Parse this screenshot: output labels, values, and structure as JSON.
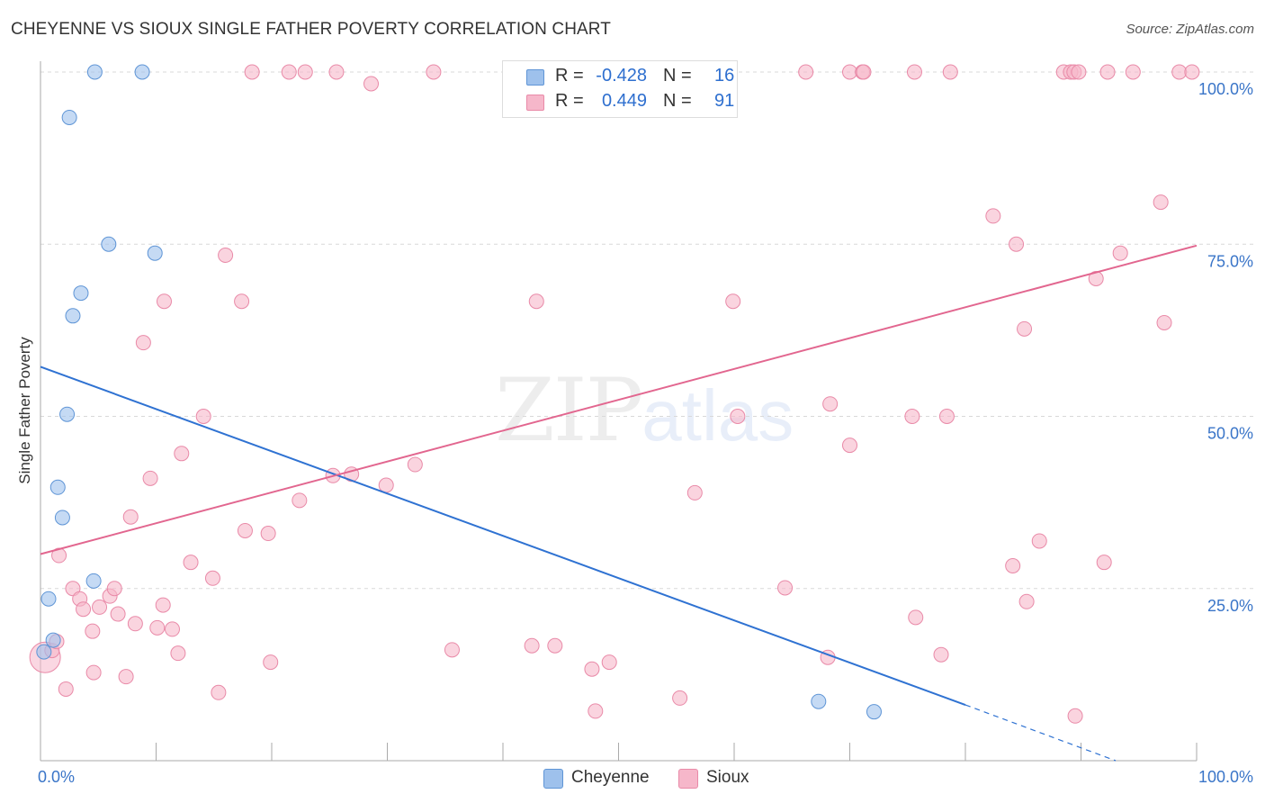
{
  "title": "CHEYENNE VS SIOUX SINGLE FATHER POVERTY CORRELATION CHART",
  "source": "Source: ZipAtlas.com",
  "watermark": {
    "zip": "ZIP",
    "atlas": "atlas"
  },
  "chart_data": {
    "type": "scatter",
    "title": "CHEYENNE VS SIOUX SINGLE FATHER POVERTY CORRELATION CHART",
    "xlabel": "",
    "ylabel": "Single Father Poverty",
    "xlim": [
      0,
      100
    ],
    "ylim": [
      0,
      100
    ],
    "x_tick_labels": {
      "left": "0.0%",
      "right": "100.0%"
    },
    "y_ticks": [
      {
        "value": 25,
        "label": "25.0%"
      },
      {
        "value": 50,
        "label": "50.0%"
      },
      {
        "value": 75,
        "label": "75.0%"
      },
      {
        "value": 100,
        "label": "100.0%"
      }
    ],
    "grid": true,
    "legend_position": "bottom-center",
    "series": [
      {
        "name": "Cheyenne",
        "color": "#9ec1ec",
        "edge": "#5f95d6",
        "line_color": "#2f72d2",
        "R": "-0.428",
        "N": "16",
        "trend": {
          "x1": 0,
          "y1": 57.2,
          "x2": 80,
          "y2": 8.1,
          "dash_to_x": 93,
          "dash_to_y": 0
        },
        "points": [
          [
            0.3,
            15.8
          ],
          [
            0.7,
            23.5
          ],
          [
            1.1,
            17.5
          ],
          [
            1.5,
            39.7
          ],
          [
            1.9,
            35.3
          ],
          [
            2.3,
            50.3
          ],
          [
            2.5,
            93.4
          ],
          [
            2.8,
            64.6
          ],
          [
            3.5,
            67.9
          ],
          [
            4.6,
            26.1
          ],
          [
            4.7,
            100
          ],
          [
            5.9,
            75.0
          ],
          [
            8.8,
            100
          ],
          [
            9.9,
            73.7
          ],
          [
            67.3,
            8.6
          ],
          [
            72.1,
            7.1
          ]
        ]
      },
      {
        "name": "Sioux",
        "color": "#f6b7ca",
        "edge": "#e98aa8",
        "line_color": "#e2668f",
        "R": "0.449",
        "N": "91",
        "trend": {
          "x1": 0,
          "y1": 30.0,
          "x2": 100,
          "y2": 74.8
        },
        "points": [
          [
            0.4,
            15.0
          ],
          [
            1.0,
            16.0
          ],
          [
            1.4,
            17.3
          ],
          [
            1.6,
            29.8
          ],
          [
            2.2,
            10.4
          ],
          [
            2.8,
            25.0
          ],
          [
            3.4,
            23.5
          ],
          [
            3.7,
            22.0
          ],
          [
            4.5,
            18.8
          ],
          [
            4.6,
            12.8
          ],
          [
            5.1,
            22.3
          ],
          [
            6.0,
            23.9
          ],
          [
            6.4,
            25.0
          ],
          [
            6.7,
            21.3
          ],
          [
            7.4,
            12.2
          ],
          [
            7.8,
            35.4
          ],
          [
            8.2,
            19.9
          ],
          [
            8.9,
            60.7
          ],
          [
            9.5,
            41.0
          ],
          [
            10.1,
            19.3
          ],
          [
            10.6,
            22.6
          ],
          [
            10.7,
            66.7
          ],
          [
            11.4,
            19.1
          ],
          [
            11.9,
            15.6
          ],
          [
            12.2,
            44.6
          ],
          [
            13.0,
            28.8
          ],
          [
            14.1,
            50.0
          ],
          [
            14.9,
            26.5
          ],
          [
            15.4,
            9.9
          ],
          [
            16.0,
            73.4
          ],
          [
            17.4,
            66.7
          ],
          [
            17.7,
            33.4
          ],
          [
            18.3,
            100
          ],
          [
            19.7,
            33.0
          ],
          [
            19.9,
            14.3
          ],
          [
            21.5,
            100
          ],
          [
            22.4,
            37.8
          ],
          [
            22.9,
            100
          ],
          [
            25.3,
            41.4
          ],
          [
            25.6,
            100
          ],
          [
            26.9,
            41.6
          ],
          [
            28.6,
            98.3
          ],
          [
            29.9,
            40.0
          ],
          [
            32.4,
            43.0
          ],
          [
            34.0,
            100
          ],
          [
            35.6,
            16.1
          ],
          [
            42.5,
            16.7
          ],
          [
            42.9,
            66.7
          ],
          [
            44.5,
            16.7
          ],
          [
            45.7,
            100
          ],
          [
            47.7,
            13.3
          ],
          [
            48.0,
            7.2
          ],
          [
            49.2,
            14.3
          ],
          [
            55.3,
            9.1
          ],
          [
            56.6,
            38.9
          ],
          [
            59.9,
            66.7
          ],
          [
            60.3,
            50.0
          ],
          [
            64.4,
            25.1
          ],
          [
            66.2,
            100
          ],
          [
            68.1,
            15.0
          ],
          [
            68.3,
            51.8
          ],
          [
            70.0,
            100
          ],
          [
            71.1,
            100
          ],
          [
            71.2,
            100
          ],
          [
            70.0,
            45.8
          ],
          [
            75.4,
            50.0
          ],
          [
            75.6,
            100
          ],
          [
            75.7,
            20.8
          ],
          [
            77.9,
            15.4
          ],
          [
            78.4,
            50.0
          ],
          [
            78.7,
            100
          ],
          [
            82.4,
            79.1
          ],
          [
            84.1,
            28.3
          ],
          [
            84.4,
            75.0
          ],
          [
            85.1,
            62.7
          ],
          [
            85.3,
            23.1
          ],
          [
            86.4,
            31.9
          ],
          [
            88.5,
            100
          ],
          [
            89.1,
            100
          ],
          [
            89.4,
            100
          ],
          [
            89.8,
            100
          ],
          [
            89.5,
            6.5
          ],
          [
            91.3,
            70.0
          ],
          [
            92.0,
            28.8
          ],
          [
            92.3,
            100
          ],
          [
            93.4,
            73.7
          ],
          [
            94.5,
            100
          ],
          [
            96.9,
            81.1
          ],
          [
            97.2,
            63.6
          ],
          [
            98.5,
            100
          ],
          [
            99.6,
            100
          ]
        ]
      }
    ]
  }
}
